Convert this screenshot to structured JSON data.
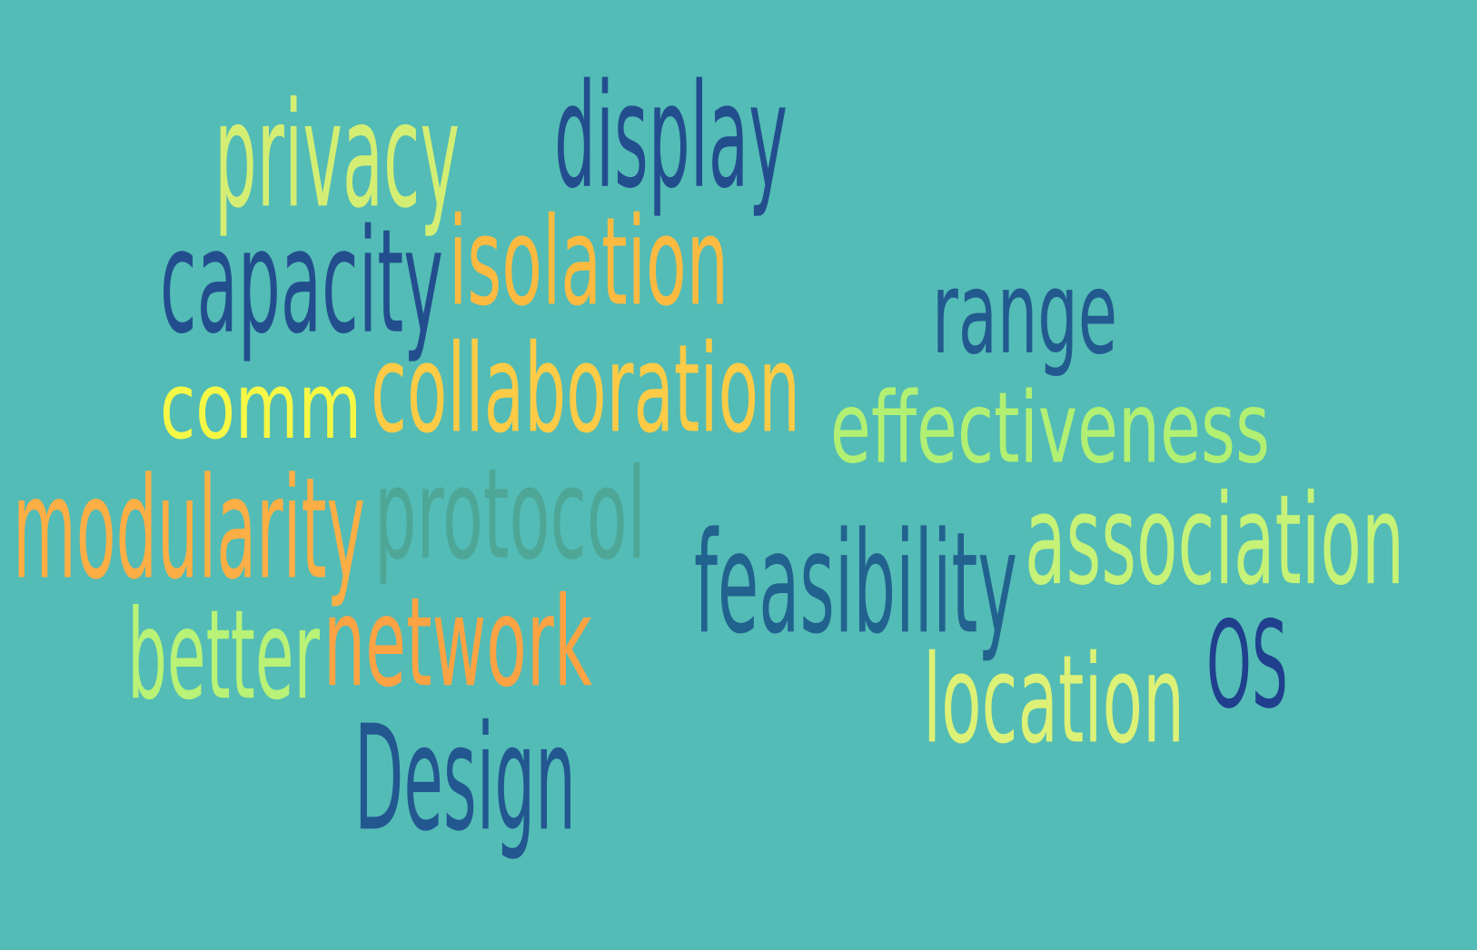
{
  "background_color": "#53BCB6",
  "words": [
    {
      "text": "privacy",
      "color": "#D4EE74"
    },
    {
      "text": "display",
      "color": "#234E8E"
    },
    {
      "text": "capacity",
      "color": "#234E8E"
    },
    {
      "text": "isolation",
      "color": "#FDBA41"
    },
    {
      "text": "range",
      "color": "#225A8F"
    },
    {
      "text": "comm",
      "color": "#F6F845"
    },
    {
      "text": "collaboration",
      "color": "#FDCB46"
    },
    {
      "text": "effectiveness",
      "color": "#B2F073"
    },
    {
      "text": "modularity",
      "color": "#FDAE45"
    },
    {
      "text": "protocol",
      "color": "#4EA696"
    },
    {
      "text": "feasibility",
      "color": "#22628F"
    },
    {
      "text": "association",
      "color": "#C6F278"
    },
    {
      "text": "better",
      "color": "#B8F276"
    },
    {
      "text": "network",
      "color": "#FDA343"
    },
    {
      "text": "OS",
      "color": "#20408E"
    },
    {
      "text": "location",
      "color": "#DDF176"
    },
    {
      "text": "Design",
      "color": "#225790"
    }
  ]
}
